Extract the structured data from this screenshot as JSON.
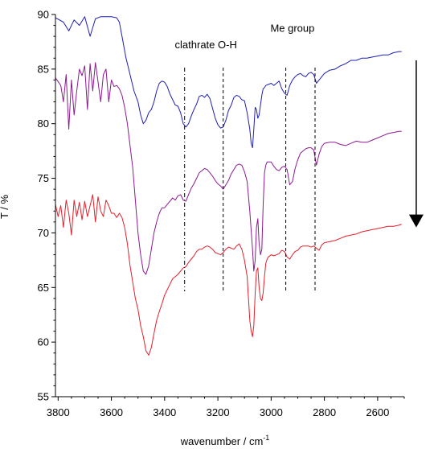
{
  "chart_data": {
    "type": "line",
    "title": "",
    "xlabel": "wavenumber / cm",
    "xlabel_superscript": "-1",
    "ylabel": "T / %",
    "xlim": [
      3810,
      2500
    ],
    "ylim": [
      55,
      90
    ],
    "x_ticks": [
      3800,
      3600,
      3400,
      3200,
      3000,
      2800,
      2600
    ],
    "y_ticks": [
      55,
      60,
      65,
      70,
      75,
      80,
      85,
      90
    ],
    "grid": false,
    "legend": "none",
    "annotations": [
      {
        "text": "clathrate O-H",
        "x": 3245,
        "y": 86.9
      },
      {
        "text": "Me group",
        "x": 2920,
        "y": 88.4
      }
    ],
    "reference_lines": [
      3325,
      3180,
      2945,
      2835
    ],
    "arrow": {
      "x": 2455,
      "from_y": 85.8,
      "to_y": 70.5,
      "direction": "down"
    },
    "series": [
      {
        "color": "#1f1fb4",
        "x": [
          3810,
          3780,
          3760,
          3740,
          3720,
          3700,
          3680,
          3660,
          3640,
          3620,
          3600,
          3580,
          3570,
          3560,
          3545,
          3530,
          3515,
          3500,
          3490,
          3480,
          3470,
          3460,
          3450,
          3440,
          3430,
          3420,
          3410,
          3400,
          3390,
          3380,
          3370,
          3360,
          3350,
          3340,
          3330,
          3320,
          3310,
          3300,
          3290,
          3280,
          3270,
          3260,
          3250,
          3240,
          3230,
          3220,
          3210,
          3200,
          3190,
          3180,
          3170,
          3160,
          3150,
          3140,
          3130,
          3120,
          3110,
          3100,
          3090,
          3080,
          3075,
          3070,
          3065,
          3060,
          3055,
          3050,
          3045,
          3040,
          3035,
          3030,
          3025,
          3020,
          3010,
          3000,
          2990,
          2980,
          2970,
          2960,
          2950,
          2940,
          2930,
          2920,
          2910,
          2900,
          2890,
          2880,
          2870,
          2860,
          2850,
          2840,
          2830,
          2820,
          2800,
          2780,
          2760,
          2740,
          2720,
          2700,
          2680,
          2660,
          2640,
          2620,
          2600,
          2580,
          2560,
          2540,
          2520,
          2510
        ],
        "y": [
          89.7,
          89.3,
          88.5,
          89.5,
          89.0,
          89.8,
          88.0,
          89.6,
          89.8,
          89.8,
          89.8,
          89.7,
          89.3,
          88.0,
          86.0,
          84.5,
          83.0,
          82.0,
          80.8,
          80.0,
          80.3,
          81.0,
          81.3,
          82.0,
          83.0,
          83.7,
          83.9,
          83.8,
          83.4,
          82.7,
          82.2,
          81.7,
          81.6,
          81.0,
          80.0,
          79.7,
          80.0,
          80.7,
          81.3,
          81.8,
          82.5,
          82.6,
          82.4,
          82.7,
          82.3,
          81.4,
          80.5,
          79.9,
          79.6,
          79.7,
          80.3,
          81.2,
          81.7,
          82.4,
          82.6,
          82.5,
          82.2,
          82.1,
          81.0,
          79.5,
          78.2,
          77.8,
          79.5,
          81.5,
          81.3,
          80.5,
          80.8,
          81.7,
          82.6,
          83.2,
          83.3,
          83.5,
          83.6,
          83.7,
          83.5,
          83.7,
          83.9,
          83.2,
          82.8,
          82.6,
          83.5,
          84.0,
          84.3,
          84.5,
          84.6,
          84.4,
          84.3,
          84.6,
          84.7,
          84.5,
          83.7,
          84.0,
          84.6,
          84.9,
          85.0,
          85.3,
          85.5,
          85.8,
          85.8,
          86.0,
          86.0,
          86.1,
          86.2,
          86.3,
          86.3,
          86.5,
          86.6,
          86.6
        ]
      },
      {
        "color": "#8c1a91",
        "x": [
          3810,
          3790,
          3780,
          3770,
          3760,
          3750,
          3740,
          3730,
          3720,
          3710,
          3700,
          3690,
          3680,
          3670,
          3660,
          3650,
          3640,
          3630,
          3620,
          3610,
          3600,
          3590,
          3580,
          3570,
          3560,
          3550,
          3540,
          3530,
          3520,
          3510,
          3500,
          3490,
          3480,
          3470,
          3460,
          3450,
          3440,
          3430,
          3420,
          3410,
          3400,
          3390,
          3380,
          3370,
          3360,
          3350,
          3340,
          3330,
          3320,
          3310,
          3300,
          3290,
          3280,
          3270,
          3260,
          3250,
          3240,
          3230,
          3220,
          3210,
          3200,
          3190,
          3180,
          3170,
          3160,
          3150,
          3140,
          3130,
          3120,
          3110,
          3100,
          3090,
          3080,
          3070,
          3065,
          3060,
          3055,
          3050,
          3045,
          3040,
          3035,
          3030,
          3025,
          3020,
          3015,
          3010,
          3000,
          2990,
          2980,
          2970,
          2960,
          2950,
          2940,
          2930,
          2920,
          2910,
          2900,
          2890,
          2880,
          2870,
          2860,
          2850,
          2840,
          2830,
          2820,
          2810,
          2800,
          2780,
          2760,
          2740,
          2720,
          2700,
          2680,
          2660,
          2640,
          2620,
          2600,
          2580,
          2560,
          2540,
          2520,
          2510
        ],
        "y": [
          84.2,
          83.5,
          82.0,
          84.5,
          79.5,
          84.0,
          80.8,
          83.0,
          85.0,
          84.4,
          85.3,
          81.3,
          85.5,
          83.0,
          85.6,
          83.8,
          82.0,
          84.5,
          85.0,
          82.0,
          84.0,
          83.4,
          83.5,
          83.2,
          82.6,
          81.5,
          80.0,
          78.0,
          76.0,
          73.0,
          70.0,
          68.0,
          66.5,
          66.2,
          67.0,
          68.5,
          70.0,
          71.0,
          71.8,
          72.3,
          72.3,
          72.6,
          72.9,
          73.2,
          73.0,
          73.4,
          73.5,
          73.0,
          72.9,
          73.5,
          74.1,
          74.5,
          75.0,
          75.5,
          75.7,
          75.9,
          75.8,
          75.5,
          75.2,
          74.8,
          74.5,
          74.3,
          74.0,
          74.4,
          74.8,
          75.4,
          75.8,
          76.2,
          76.3,
          76.2,
          75.6,
          74.7,
          72.0,
          68.5,
          66.5,
          67.5,
          70.5,
          71.3,
          69.0,
          68.0,
          68.5,
          72.5,
          75.5,
          76.2,
          76.5,
          76.5,
          76.5,
          76.1,
          75.8,
          75.7,
          76.0,
          76.1,
          75.8,
          74.4,
          74.7,
          75.9,
          76.7,
          77.3,
          77.5,
          77.7,
          77.8,
          77.8,
          77.6,
          76.2,
          77.2,
          77.9,
          78.2,
          78.3,
          78.3,
          78.1,
          78.0,
          78.2,
          78.4,
          78.3,
          78.3,
          78.5,
          78.7,
          78.9,
          79.1,
          79.2,
          79.3,
          79.3
        ]
      },
      {
        "color": "#e3202b",
        "x": [
          3810,
          3800,
          3790,
          3780,
          3770,
          3760,
          3750,
          3740,
          3730,
          3720,
          3710,
          3700,
          3690,
          3680,
          3670,
          3660,
          3650,
          3640,
          3630,
          3620,
          3610,
          3600,
          3590,
          3580,
          3570,
          3560,
          3550,
          3540,
          3530,
          3520,
          3510,
          3500,
          3490,
          3480,
          3470,
          3460,
          3450,
          3440,
          3430,
          3420,
          3410,
          3400,
          3390,
          3380,
          3370,
          3360,
          3350,
          3340,
          3330,
          3320,
          3310,
          3300,
          3290,
          3280,
          3270,
          3260,
          3250,
          3240,
          3230,
          3220,
          3210,
          3200,
          3190,
          3180,
          3170,
          3160,
          3150,
          3140,
          3130,
          3120,
          3110,
          3100,
          3090,
          3080,
          3075,
          3070,
          3065,
          3060,
          3055,
          3050,
          3045,
          3040,
          3035,
          3030,
          3025,
          3020,
          3015,
          3010,
          3000,
          2990,
          2980,
          2970,
          2960,
          2950,
          2940,
          2930,
          2920,
          2910,
          2900,
          2890,
          2880,
          2870,
          2860,
          2850,
          2840,
          2830,
          2820,
          2810,
          2800,
          2780,
          2760,
          2740,
          2720,
          2700,
          2680,
          2660,
          2640,
          2620,
          2600,
          2580,
          2560,
          2540,
          2520,
          2510
        ],
        "y": [
          72.6,
          71.5,
          72.5,
          70.5,
          73.0,
          71.8,
          69.8,
          73.0,
          71.5,
          72.8,
          71.2,
          72.9,
          71.5,
          72.5,
          73.5,
          71.0,
          73.3,
          72.0,
          71.5,
          73.0,
          72.5,
          71.8,
          71.8,
          71.4,
          71.8,
          71.4,
          70.5,
          69.0,
          67.0,
          65.5,
          64.0,
          63.0,
          61.5,
          60.5,
          59.2,
          58.8,
          59.5,
          60.8,
          62.0,
          62.8,
          63.5,
          64.3,
          64.8,
          65.3,
          65.8,
          66.0,
          66.2,
          66.5,
          66.8,
          66.9,
          67.3,
          67.6,
          67.9,
          68.3,
          68.5,
          68.5,
          68.7,
          68.8,
          68.7,
          68.5,
          68.2,
          68.1,
          68.0,
          68.2,
          68.5,
          68.7,
          68.6,
          68.5,
          68.8,
          69.0,
          68.5,
          67.5,
          66.0,
          62.0,
          61.0,
          60.5,
          61.5,
          64.5,
          66.5,
          66.8,
          65.0,
          64.0,
          63.8,
          64.5,
          66.0,
          67.2,
          67.6,
          67.8,
          68.0,
          67.9,
          68.0,
          68.1,
          68.4,
          68.3,
          67.8,
          67.6,
          68.0,
          68.3,
          68.4,
          68.7,
          68.8,
          68.8,
          68.8,
          68.7,
          68.8,
          68.6,
          68.4,
          68.9,
          69.1,
          69.2,
          69.3,
          69.5,
          69.7,
          69.8,
          69.9,
          70.1,
          70.2,
          70.3,
          70.4,
          70.5,
          70.6,
          70.6,
          70.7,
          70.8
        ]
      }
    ]
  }
}
